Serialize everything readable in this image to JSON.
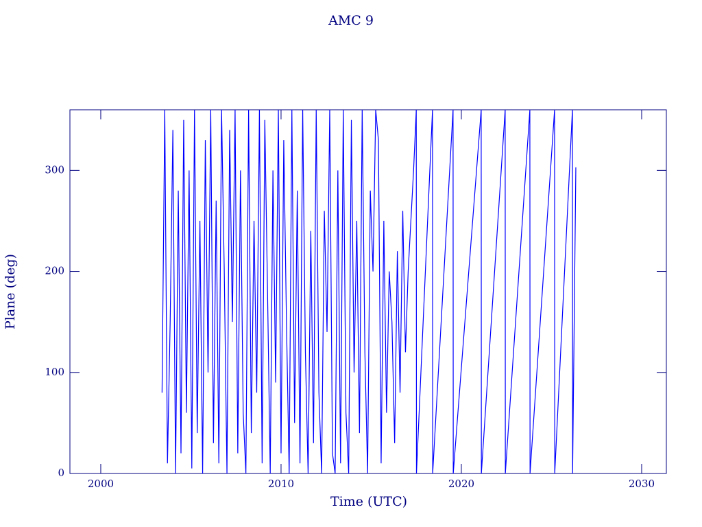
{
  "chart_data": {
    "type": "line",
    "title": "AMC 9",
    "xlabel": "Time (UTC)",
    "ylabel": "Plane (deg)",
    "xlim": [
      1998.29,
      2031.37
    ],
    "xticks": [
      2000,
      2010,
      2020,
      2030
    ],
    "ylim": [
      0,
      360
    ],
    "yticks": [
      0,
      100,
      200,
      300
    ],
    "series": [
      {
        "name": "AMC 9",
        "color": "#0000ff",
        "x": [
          2003.4,
          2003.55,
          2003.7,
          2003.85,
          2004.0,
          2004.15,
          2004.3,
          2004.45,
          2004.6,
          2004.75,
          2004.9,
          2005.05,
          2005.2,
          2005.35,
          2005.5,
          2005.65,
          2005.8,
          2005.95,
          2006.1,
          2006.25,
          2006.4,
          2006.55,
          2006.7,
          2006.85,
          2007.0,
          2007.15,
          2007.3,
          2007.45,
          2007.6,
          2007.75,
          2007.9,
          2008.05,
          2008.2,
          2008.35,
          2008.5,
          2008.65,
          2008.8,
          2008.95,
          2009.1,
          2009.25,
          2009.4,
          2009.55,
          2009.7,
          2009.85,
          2010.0,
          2010.15,
          2010.3,
          2010.45,
          2010.6,
          2010.75,
          2010.9,
          2011.05,
          2011.2,
          2011.35,
          2011.5,
          2011.65,
          2011.8,
          2011.95,
          2012.1,
          2012.25,
          2012.4,
          2012.55,
          2012.7,
          2012.85,
          2013.0,
          2013.15,
          2013.3,
          2013.45,
          2013.6,
          2013.75,
          2013.9,
          2014.05,
          2014.2,
          2014.35,
          2014.5,
          2014.65,
          2014.8,
          2014.95,
          2015.1,
          2015.25,
          2015.4,
          2015.55,
          2015.7,
          2015.85,
          2016.0,
          2016.15,
          2016.3,
          2016.45,
          2016.6,
          2016.75,
          2016.9,
          2017.05,
          2017.2,
          2017.35,
          2017.5,
          2017.51,
          2018.4,
          2018.41,
          2019.54,
          2019.55,
          2021.1,
          2021.11,
          2022.43,
          2022.44,
          2023.8,
          2023.81,
          2025.17,
          2025.18,
          2026.16,
          2026.17,
          2026.35
        ],
        "values": [
          80,
          360,
          10,
          150,
          340,
          0,
          280,
          20,
          350,
          60,
          300,
          5,
          360,
          40,
          250,
          0,
          330,
          100,
          360,
          30,
          270,
          10,
          360,
          200,
          0,
          340,
          150,
          360,
          20,
          300,
          60,
          0,
          360,
          40,
          250,
          80,
          360,
          10,
          350,
          180,
          0,
          300,
          90,
          360,
          20,
          330,
          150,
          0,
          360,
          50,
          280,
          10,
          360,
          120,
          0,
          240,
          30,
          360,
          80,
          0,
          260,
          140,
          360,
          20,
          0,
          300,
          10,
          360,
          60,
          0,
          350,
          100,
          250,
          40,
          360,
          120,
          0,
          280,
          200,
          360,
          330,
          10,
          250,
          60,
          200,
          150,
          30,
          220,
          80,
          260,
          120,
          200,
          250,
          300,
          360,
          0,
          360,
          0,
          360,
          0,
          360,
          0,
          360,
          0,
          360,
          0,
          360,
          0,
          360,
          0,
          303
        ]
      }
    ]
  }
}
